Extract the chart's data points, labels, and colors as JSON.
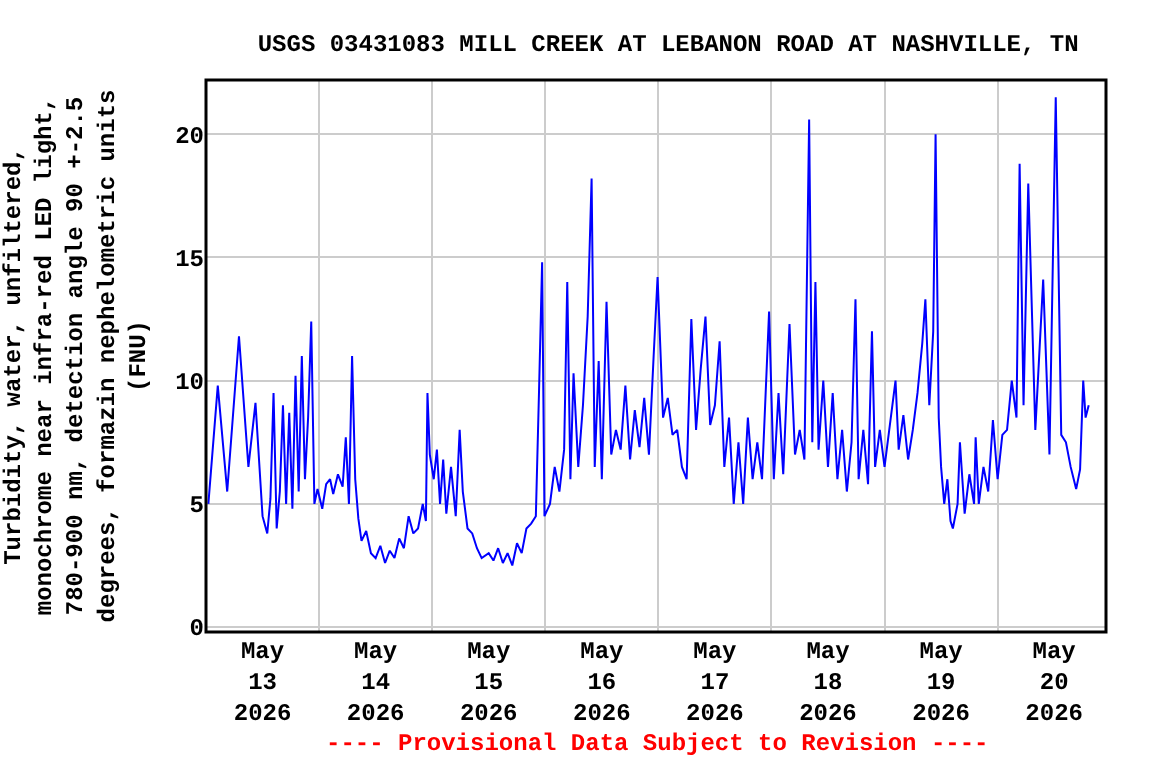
{
  "chart_data": {
    "type": "line",
    "title": "USGS 03431083 MILL CREEK AT LEBANON ROAD AT NASHVILLE, TN",
    "ylabel": "Turbidity, water, unfiltered,\nmonochrome near infra-red LED light,\n780-900 nm, detection angle 90 +-2.5\ndegrees, formazin nephelometric units\n(FNU)",
    "annotations": [
      "---- Provisional Data Subject to Revision ----"
    ],
    "x": [
      "2026-05-13T00:30",
      "2026-05-13T02:30",
      "2026-05-13T04:30",
      "2026-05-13T07:00",
      "2026-05-13T09:00",
      "2026-05-13T10:30",
      "2026-05-13T12:00",
      "2026-05-13T13:00",
      "2026-05-13T13:40",
      "2026-05-13T14:20",
      "2026-05-13T15:00",
      "2026-05-13T15:40",
      "2026-05-13T16:20",
      "2026-05-13T17:00",
      "2026-05-13T17:40",
      "2026-05-13T18:20",
      "2026-05-13T19:00",
      "2026-05-13T19:40",
      "2026-05-13T20:20",
      "2026-05-13T21:00",
      "2026-05-13T21:40",
      "2026-05-13T22:20",
      "2026-05-13T23:00",
      "2026-05-13T23:40",
      "2026-05-14T00:40",
      "2026-05-14T01:30",
      "2026-05-14T02:20",
      "2026-05-14T03:00",
      "2026-05-14T04:00",
      "2026-05-14T05:00",
      "2026-05-14T05:40",
      "2026-05-14T06:20",
      "2026-05-14T07:00",
      "2026-05-14T07:40",
      "2026-05-14T08:20",
      "2026-05-14T09:00",
      "2026-05-14T10:00",
      "2026-05-14T11:00",
      "2026-05-14T12:00",
      "2026-05-14T13:00",
      "2026-05-14T14:00",
      "2026-05-14T15:00",
      "2026-05-14T16:00",
      "2026-05-14T17:00",
      "2026-05-14T18:00",
      "2026-05-14T19:00",
      "2026-05-14T20:00",
      "2026-05-14T21:00",
      "2026-05-14T22:00",
      "2026-05-14T22:40",
      "2026-05-14T23:00",
      "2026-05-14T23:30",
      "2026-05-15T00:20",
      "2026-05-15T01:00",
      "2026-05-15T01:40",
      "2026-05-15T02:20",
      "2026-05-15T03:00",
      "2026-05-15T04:00",
      "2026-05-15T05:00",
      "2026-05-15T05:50",
      "2026-05-15T06:30",
      "2026-05-15T07:30",
      "2026-05-15T08:30",
      "2026-05-15T09:30",
      "2026-05-15T10:30",
      "2026-05-15T12:00",
      "2026-05-15T13:00",
      "2026-05-15T14:00",
      "2026-05-15T15:00",
      "2026-05-15T16:00",
      "2026-05-15T17:00",
      "2026-05-15T18:00",
      "2026-05-15T19:00",
      "2026-05-15T20:00",
      "2026-05-15T21:00",
      "2026-05-15T22:00",
      "2026-05-15T22:40",
      "2026-05-15T23:20",
      "2026-05-15T23:50",
      "2026-05-16T01:00",
      "2026-05-16T02:00",
      "2026-05-16T03:00",
      "2026-05-16T04:00",
      "2026-05-16T04:40",
      "2026-05-16T05:20",
      "2026-05-16T06:00",
      "2026-05-16T07:00",
      "2026-05-16T08:00",
      "2026-05-16T09:00",
      "2026-05-16T09:50",
      "2026-05-16T10:30",
      "2026-05-16T11:20",
      "2026-05-16T12:00",
      "2026-05-16T13:00",
      "2026-05-16T14:00",
      "2026-05-16T15:00",
      "2026-05-16T16:00",
      "2026-05-16T17:00",
      "2026-05-16T18:00",
      "2026-05-16T19:00",
      "2026-05-16T20:00",
      "2026-05-16T21:00",
      "2026-05-16T22:00",
      "2026-05-16T23:00",
      "2026-05-16T23:50",
      "2026-05-17T01:00",
      "2026-05-17T02:00",
      "2026-05-17T03:00",
      "2026-05-17T04:00",
      "2026-05-17T05:00",
      "2026-05-17T06:00",
      "2026-05-17T07:00",
      "2026-05-17T08:00",
      "2026-05-17T09:00",
      "2026-05-17T10:00",
      "2026-05-17T11:00",
      "2026-05-17T12:00",
      "2026-05-17T13:00",
      "2026-05-17T14:00",
      "2026-05-17T15:00",
      "2026-05-17T16:00",
      "2026-05-17T17:00",
      "2026-05-17T18:00",
      "2026-05-17T19:00",
      "2026-05-17T20:00",
      "2026-05-17T21:00",
      "2026-05-17T22:00",
      "2026-05-17T23:30",
      "2026-05-18T00:30",
      "2026-05-18T01:30",
      "2026-05-18T02:30",
      "2026-05-18T03:50",
      "2026-05-18T05:00",
      "2026-05-18T06:00",
      "2026-05-18T07:00",
      "2026-05-18T08:00",
      "2026-05-18T08:40",
      "2026-05-18T09:20",
      "2026-05-18T10:00",
      "2026-05-18T11:00",
      "2026-05-18T12:00",
      "2026-05-18T13:00",
      "2026-05-18T14:00",
      "2026-05-18T15:00",
      "2026-05-18T16:00",
      "2026-05-18T17:00",
      "2026-05-18T17:50",
      "2026-05-18T18:30",
      "2026-05-18T19:30",
      "2026-05-18T20:30",
      "2026-05-18T21:20",
      "2026-05-18T22:00",
      "2026-05-18T23:00",
      "2026-05-19T00:00",
      "2026-05-19T01:00",
      "2026-05-19T02:20",
      "2026-05-19T03:00",
      "2026-05-19T04:00",
      "2026-05-19T05:00",
      "2026-05-19T06:00",
      "2026-05-19T07:00",
      "2026-05-19T08:00",
      "2026-05-19T08:40",
      "2026-05-19T09:30",
      "2026-05-19T10:20",
      "2026-05-19T10:50",
      "2026-05-19T11:30",
      "2026-05-19T12:00",
      "2026-05-19T12:40",
      "2026-05-19T13:20",
      "2026-05-19T14:00",
      "2026-05-19T14:30",
      "2026-05-19T15:30",
      "2026-05-19T16:00",
      "2026-05-19T17:00",
      "2026-05-19T18:00",
      "2026-05-19T19:00",
      "2026-05-19T19:20",
      "2026-05-19T20:00",
      "2026-05-19T21:00",
      "2026-05-19T22:00",
      "2026-05-19T23:00",
      "2026-05-20T00:00",
      "2026-05-20T01:00",
      "2026-05-20T02:00",
      "2026-05-20T03:00",
      "2026-05-20T04:00",
      "2026-05-20T04:40",
      "2026-05-20T05:30",
      "2026-05-20T06:30",
      "2026-05-20T08:00",
      "2026-05-20T09:40",
      "2026-05-20T11:00",
      "2026-05-20T12:20",
      "2026-05-20T13:30",
      "2026-05-20T14:30",
      "2026-05-20T15:30",
      "2026-05-20T16:40",
      "2026-05-20T17:30",
      "2026-05-20T18:10",
      "2026-05-20T18:40",
      "2026-05-20T19:20"
    ],
    "series": [
      {
        "color": "#0000ff",
        "values": [
          5.0,
          9.8,
          5.5,
          11.8,
          6.5,
          9.1,
          4.5,
          3.8,
          5.2,
          9.5,
          4.0,
          5.5,
          9.0,
          5.0,
          8.7,
          4.8,
          10.2,
          5.5,
          11.0,
          6.0,
          8.5,
          12.4,
          5.0,
          5.6,
          4.8,
          5.8,
          6.0,
          5.4,
          6.2,
          5.7,
          7.7,
          5.0,
          11.0,
          6.0,
          4.4,
          3.5,
          3.9,
          3.0,
          2.8,
          3.3,
          2.6,
          3.1,
          2.8,
          3.6,
          3.2,
          4.5,
          3.8,
          4.0,
          5.0,
          4.3,
          9.5,
          7.0,
          6.0,
          7.2,
          5.0,
          6.8,
          4.6,
          6.5,
          4.5,
          8.0,
          5.5,
          4.0,
          3.8,
          3.2,
          2.8,
          3.0,
          2.7,
          3.2,
          2.6,
          3.0,
          2.5,
          3.4,
          3.0,
          4.0,
          4.2,
          4.5,
          9.5,
          14.8,
          4.5,
          5.0,
          6.5,
          5.5,
          7.2,
          14.0,
          6.0,
          10.3,
          6.5,
          9.0,
          12.6,
          18.2,
          6.5,
          10.8,
          6.0,
          13.2,
          7.0,
          8.0,
          7.2,
          9.8,
          6.8,
          8.8,
          7.3,
          9.3,
          7.0,
          11.0,
          14.2,
          8.5,
          9.3,
          7.8,
          8.0,
          6.5,
          6.0,
          12.5,
          8.0,
          10.5,
          12.6,
          8.2,
          9.0,
          11.6,
          6.5,
          8.5,
          5.0,
          7.5,
          5.0,
          8.5,
          6.0,
          7.5,
          6.0,
          12.8,
          6.0,
          9.5,
          6.2,
          12.3,
          7.0,
          8.0,
          6.8,
          20.6,
          7.5,
          14.0,
          7.2,
          10.0,
          6.5,
          9.5,
          6.0,
          8.0,
          5.5,
          7.5,
          13.3,
          6.0,
          8.0,
          5.8,
          12.0,
          6.5,
          8.0,
          6.5,
          8.0,
          10.0,
          7.2,
          8.6,
          6.8,
          8.0,
          9.5,
          11.5,
          13.3,
          9.0,
          12.0,
          20.0,
          8.5,
          6.5,
          5.0,
          6.0,
          4.3,
          4.0,
          5.0,
          7.5,
          4.6,
          6.2,
          5.0,
          7.7,
          5.0,
          6.5,
          5.5,
          8.4,
          6.0,
          7.8,
          8.0,
          10.0,
          8.5,
          18.8,
          9.0,
          18.0,
          8.0,
          14.1,
          7.0,
          21.5,
          7.8,
          7.5,
          6.5,
          5.6,
          6.4,
          10.0,
          8.5,
          9.0
        ]
      }
    ],
    "xlim": [
      "2026-05-13T00:00",
      "2026-05-20T23:00"
    ],
    "xticks": [
      {
        "value": "2026-05-13T12:00",
        "label": "May\n13\n2026"
      },
      {
        "value": "2026-05-14T00:00",
        "label": null
      },
      {
        "value": "2026-05-14T12:00",
        "label": "May\n14\n2026"
      },
      {
        "value": "2026-05-15T00:00",
        "label": null
      },
      {
        "value": "2026-05-15T12:00",
        "label": "May\n15\n2026"
      },
      {
        "value": "2026-05-16T00:00",
        "label": null
      },
      {
        "value": "2026-05-16T12:00",
        "label": "May\n16\n2026"
      },
      {
        "value": "2026-05-17T00:00",
        "label": null
      },
      {
        "value": "2026-05-17T12:00",
        "label": "May\n17\n2026"
      },
      {
        "value": "2026-05-18T00:00",
        "label": null
      },
      {
        "value": "2026-05-18T12:00",
        "label": "May\n18\n2026"
      },
      {
        "value": "2026-05-19T00:00",
        "label": null
      },
      {
        "value": "2026-05-19T12:00",
        "label": "May\n19\n2026"
      },
      {
        "value": "2026-05-20T00:00",
        "label": null
      },
      {
        "value": "2026-05-20T12:00",
        "label": "May\n20\n2026"
      }
    ],
    "ylim": [
      -0.2,
      22.2
    ],
    "yticks": [
      0,
      5,
      10,
      15,
      20
    ],
    "grid": true,
    "marker": "none",
    "line_style": "solid"
  }
}
